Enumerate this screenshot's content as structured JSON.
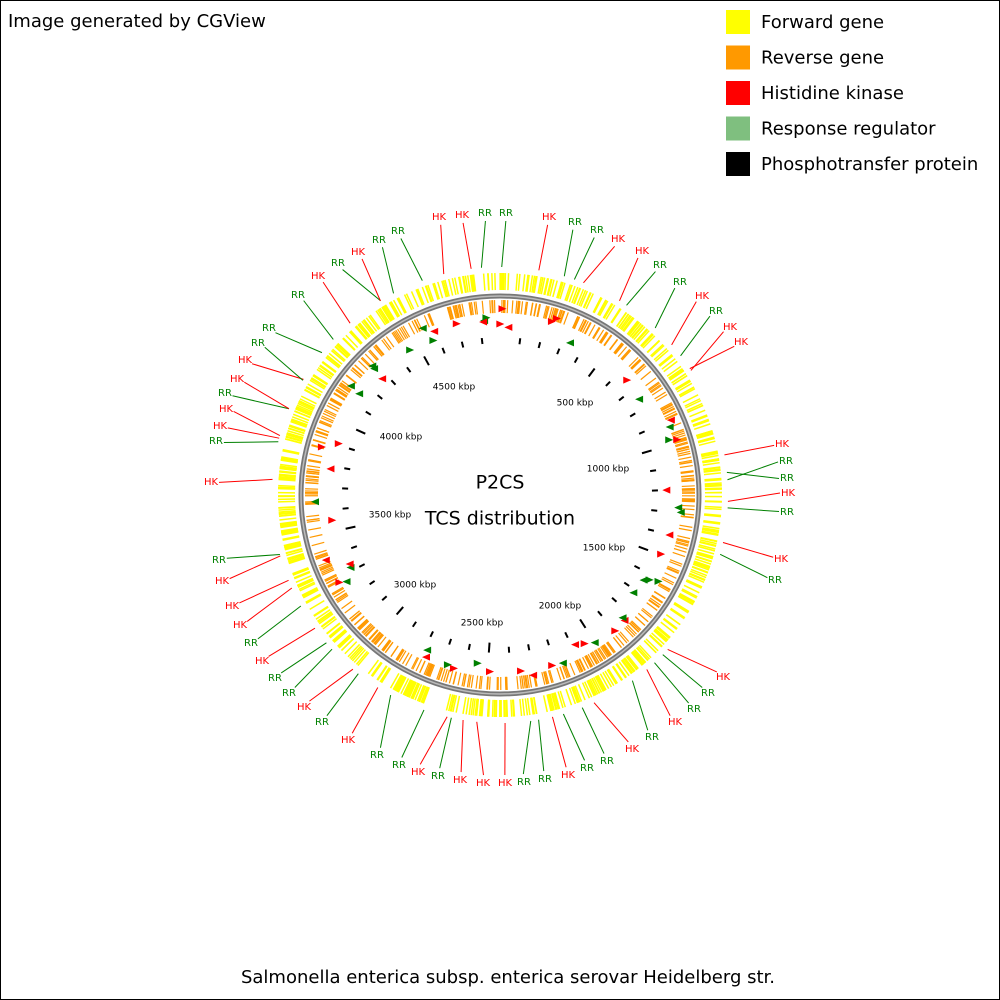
{
  "header": {
    "credit": "Image generated by CGView"
  },
  "legend": [
    {
      "label": "Forward gene",
      "color": "#ffff00"
    },
    {
      "label": "Reverse gene",
      "color": "#ff9900"
    },
    {
      "label": "Histidine kinase",
      "color": "#ff0000"
    },
    {
      "label": "Response regulator",
      "color": "#7fbf7f"
    },
    {
      "label": "Phosphotransfer protein",
      "color": "#000000"
    }
  ],
  "center": {
    "title": "P2CS",
    "subtitle": "TCS distribution"
  },
  "scale_labels": [
    "500 kbp",
    "1000 kbp",
    "1500 kbp",
    "2000 kbp",
    "2500 kbp",
    "3000 kbp",
    "3500 kbp",
    "4000 kbp",
    "4500 kbp"
  ],
  "feature_labels": [
    "HK",
    "RR",
    "RR",
    "HK",
    "RR",
    "RR",
    "HK",
    "HK",
    "RR",
    "RR",
    "HK",
    "RR",
    "HK",
    "HK",
    "HK",
    "RR",
    "RR",
    "HK",
    "RR",
    "HK",
    "RR",
    "HK",
    "RR",
    "RR",
    "HK",
    "RR",
    "HK",
    "RR",
    "RR",
    "HK",
    "RR",
    "RR",
    "HK",
    "HK",
    "HK",
    "RR",
    "HK",
    "RR",
    "RR",
    "HK",
    "RR",
    "HK",
    "RR",
    "RR",
    "HK",
    "RR",
    "HK",
    "HK",
    "HK",
    "RR",
    "HK",
    "RR",
    "HK",
    "HK",
    "RR",
    "HK",
    "HK",
    "RR",
    "RR",
    "RR",
    "HK",
    "RR",
    "HK",
    "RR",
    "RR",
    "HK"
  ],
  "footer": {
    "organism": "Salmonella enterica subsp. enterica serovar Heidelberg str."
  }
}
